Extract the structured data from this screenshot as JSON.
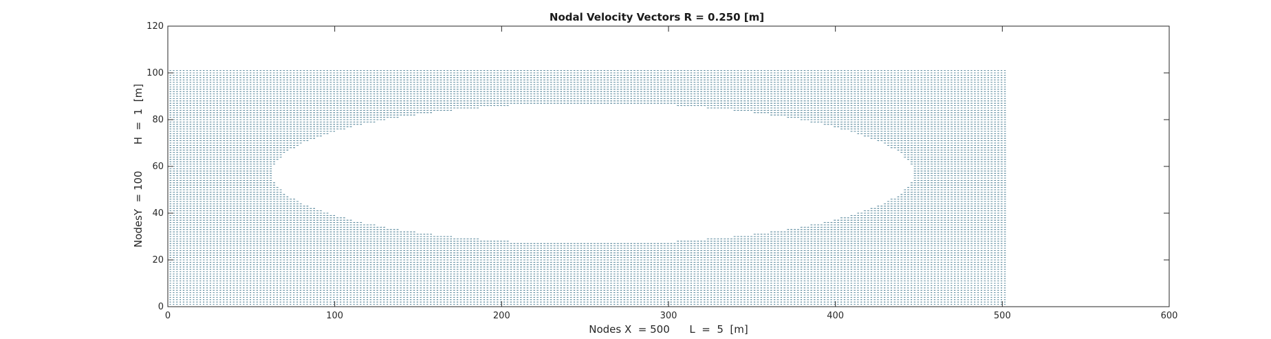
{
  "chart_data": {
    "type": "quiver",
    "title": "Nodal Velocity Vectors R = 0.250 [m]",
    "xlabel": "Nodes X  = 500      L  =  5  [m]",
    "ylabel": "NodesY  = 100        H  =  1  [m]",
    "xlim": [
      0,
      600
    ],
    "ylim": [
      0,
      120
    ],
    "xticks": [
      0,
      100,
      200,
      300,
      400,
      500,
      600
    ],
    "yticks": [
      0,
      20,
      40,
      60,
      80,
      100,
      120
    ],
    "grid": false,
    "box": true,
    "color": "#1f5f7a",
    "field": {
      "x_range": [
        1,
        501
      ],
      "y_range": [
        1,
        101
      ],
      "obstacle_region": {
        "shape": "ellipse",
        "center": [
          254,
          57
        ],
        "semi_axes": [
          192,
          30
        ]
      }
    }
  }
}
